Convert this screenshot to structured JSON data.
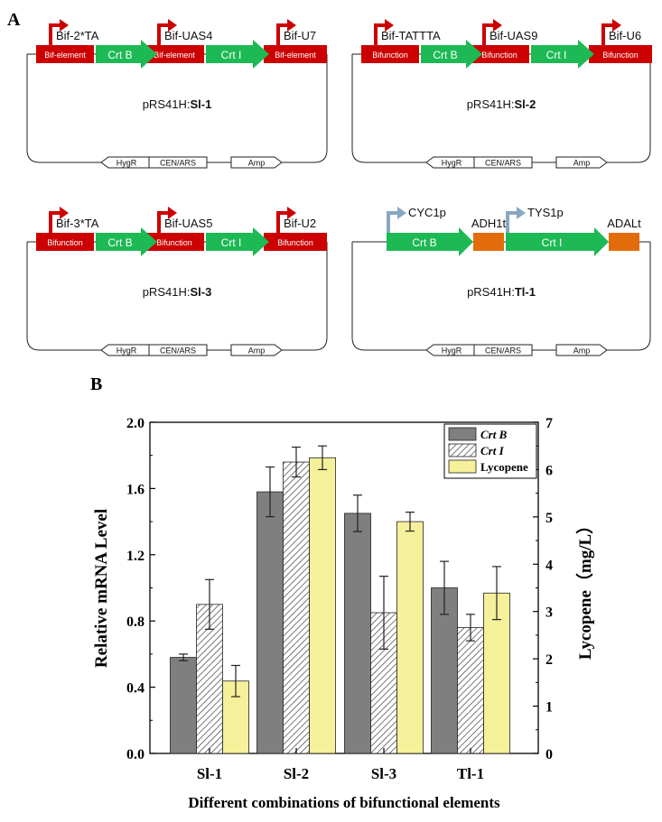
{
  "panel_a": {
    "label": "A",
    "constructs": [
      {
        "name_prefix": "pRS41H:",
        "name_bold": "Sl-1",
        "promoters": [
          "Bif-2*TA",
          "Bif-UAS4",
          "Bif-U7"
        ],
        "element_label": "Bif-element",
        "genes": [
          "Crt B",
          "Crt I"
        ],
        "markers": [
          "HygR",
          "CEN/ARS",
          "Amp"
        ]
      },
      {
        "name_prefix": "pRS41H:",
        "name_bold": "Sl-2",
        "promoters": [
          "Bif-TATTTA",
          "Bif-UAS9",
          "Bif-U6"
        ],
        "element_label": "Bifunction",
        "genes": [
          "Crt B",
          "Crt I"
        ],
        "markers": [
          "HygR",
          "CEN/ARS",
          "Amp"
        ]
      },
      {
        "name_prefix": "pRS41H:",
        "name_bold": "Sl-3",
        "promoters": [
          "Bif-3*TA",
          "Bif-UAS5",
          "Bif-U2"
        ],
        "element_label": "Bifunction",
        "genes": [
          "Crt B",
          "Crt I"
        ],
        "markers": [
          "HygR",
          "CEN/ARS",
          "Amp"
        ]
      },
      {
        "name_prefix": "pRS41H:",
        "name_bold": "Tl-1",
        "promoters": [
          "CYC1p",
          "TYS1p"
        ],
        "terminators": [
          "ADH1t",
          "ADALt"
        ],
        "genes": [
          "Crt B",
          "Crt I"
        ],
        "markers": [
          "HygR",
          "CEN/ARS",
          "Amp"
        ]
      }
    ]
  },
  "panel_b": {
    "label": "B",
    "chart_data": {
      "type": "bar",
      "categories": [
        "Sl-1",
        "Sl-2",
        "Sl-3",
        "Tl-1"
      ],
      "xlabel": "Different combinations of bifunctional elements",
      "ylabel_left": "Relative mRNA Level",
      "ylabel_right": "Lycopene（mg/L）",
      "ylim_left": [
        0,
        2.0
      ],
      "yticks_left": [
        "0.0",
        "0.4",
        "0.8",
        "1.2",
        "1.6",
        "2.0"
      ],
      "ylim_right": [
        0,
        7
      ],
      "yticks_right": [
        "0",
        "1",
        "2",
        "3",
        "4",
        "5",
        "6",
        "7"
      ],
      "legend_position": "top-right",
      "series": [
        {
          "name": "Crt B",
          "axis": "left",
          "color": "#7f7f7f",
          "pattern": "solid",
          "values": [
            0.58,
            1.58,
            1.45,
            1.0
          ],
          "errors": [
            0.02,
            0.15,
            0.11,
            0.16
          ]
        },
        {
          "name": "Crt I",
          "axis": "left",
          "color": "#ffffff",
          "pattern": "hatch",
          "values": [
            0.9,
            1.76,
            0.85,
            0.76
          ],
          "errors": [
            0.15,
            0.09,
            0.22,
            0.08
          ]
        },
        {
          "name": "Lycopene",
          "axis": "right",
          "color": "#f5f09a",
          "pattern": "solid",
          "values": [
            1.53,
            6.25,
            4.9,
            3.39
          ],
          "errors": [
            0.33,
            0.25,
            0.2,
            0.56
          ]
        }
      ]
    }
  }
}
